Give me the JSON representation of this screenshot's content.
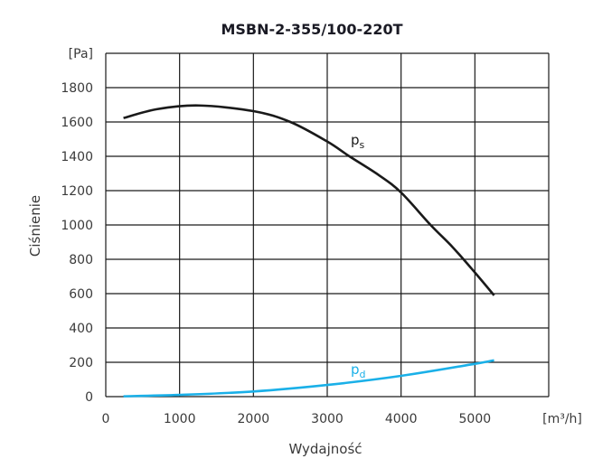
{
  "chart_data": {
    "type": "line",
    "title": "MSBN-2-355/100-220T",
    "xlabel": "Wydajność",
    "ylabel": "Ciśnienie",
    "x_unit": "[m³/h]",
    "y_unit": "[Pa]",
    "xlim": [
      0,
      6000
    ],
    "ylim": [
      0,
      2000
    ],
    "x_ticks": [
      "0",
      "1000",
      "2000",
      "3000",
      "4000",
      "5000"
    ],
    "y_ticks": [
      "0",
      "200",
      "400",
      "600",
      "800",
      "1000",
      "1200",
      "1400",
      "1600",
      "1800"
    ],
    "grid": true,
    "series": [
      {
        "name": "ps",
        "label_main": "p",
        "label_sub": "s",
        "color": "#1a1a1a",
        "x": [
          240,
          700,
          1260,
          2000,
          2500,
          3000,
          3300,
          3700,
          4000,
          4400,
          4700,
          5000,
          5260
        ],
        "y": [
          1623,
          1675,
          1696,
          1663,
          1600,
          1486,
          1400,
          1290,
          1189,
          1000,
          870,
          723,
          590
        ]
      },
      {
        "name": "pd",
        "label_main": "p",
        "label_sub": "d",
        "color": "#1ab0e8",
        "x": [
          240,
          1000,
          2000,
          3000,
          4000,
          5000,
          5260
        ],
        "y": [
          2,
          10,
          30,
          68,
          121,
          191,
          212
        ]
      }
    ]
  }
}
